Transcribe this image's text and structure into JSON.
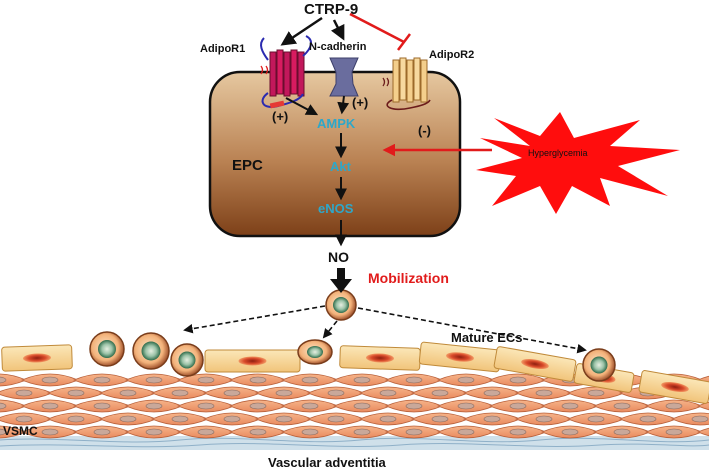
{
  "diagram": {
    "top_signal": "CTRP-9",
    "receptors": {
      "adipor1": "AdipoR1",
      "ncadherin": "N-cadherin",
      "adipor2": "AdipoR2"
    },
    "cell_label": "EPC",
    "pathway": {
      "ampk": "AMPK",
      "akt": "Akt",
      "enos": "eNOS",
      "no": "NO"
    },
    "effects": {
      "plus_left": "(+)",
      "plus_center": "(+)",
      "minus": "(-)"
    },
    "hyperglycemia": "Hyperglycemia",
    "mobilization": "Mobilization",
    "mature_ecs": "Mature ECs",
    "vsmc": "VSMC",
    "adventitia": "Vascular adventitia"
  },
  "colors": {
    "cell_top": "#e7c9a2",
    "cell_bottom": "#8a4a1f",
    "cyan_text": "#2ea7c9",
    "red_accent": "#e11b1b",
    "burst_fill": "#ff0d0d",
    "smooth_muscle": "#f0a277",
    "endothelial": "#f7d79b",
    "nucleus": "#d94a2a",
    "adventitia": "#b8cfe0"
  }
}
